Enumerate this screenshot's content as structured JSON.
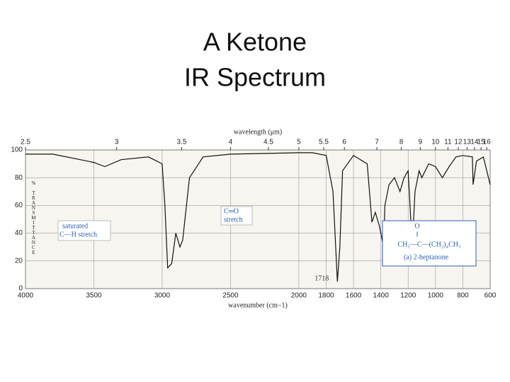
{
  "title": [
    "A Ketone",
    "IR Spectrum"
  ],
  "chart_data": {
    "type": "line",
    "xlabel": "wavenumber (cm−1)",
    "x2label": "wavelength (μm)",
    "ylabel": "% TRANSMITTANCE",
    "xlim": [
      4000,
      600
    ],
    "xticks": [
      4000,
      3500,
      3000,
      2500,
      2000,
      1800,
      1600,
      1400,
      1200,
      1000,
      800,
      600
    ],
    "x2ticks": [
      2.5,
      3,
      3.5,
      4,
      4.5,
      5,
      5.5,
      6,
      7,
      8,
      9,
      10,
      11,
      12,
      13,
      14,
      15,
      16
    ],
    "ylim": [
      0,
      100
    ],
    "yticks": [
      0,
      20,
      40,
      60,
      80,
      100
    ],
    "grid": true,
    "color": "#111111",
    "x": [
      4000,
      3800,
      3600,
      3500,
      3420,
      3300,
      3100,
      3000,
      2980,
      2960,
      2930,
      2900,
      2870,
      2850,
      2800,
      2700,
      2500,
      2000,
      1900,
      1800,
      1750,
      1718,
      1700,
      1680,
      1600,
      1500,
      1465,
      1440,
      1410,
      1380,
      1370,
      1340,
      1300,
      1260,
      1230,
      1200,
      1170,
      1150,
      1120,
      1100,
      1050,
      1000,
      950,
      900,
      850,
      800,
      730,
      725,
      700,
      650,
      600
    ],
    "values": [
      97,
      97,
      93,
      91,
      88,
      93,
      95,
      90,
      60,
      15,
      18,
      40,
      30,
      35,
      80,
      95,
      97,
      98,
      98,
      96,
      70,
      5,
      30,
      85,
      96,
      90,
      48,
      55,
      45,
      30,
      60,
      75,
      80,
      70,
      80,
      85,
      30,
      70,
      85,
      80,
      90,
      88,
      80,
      88,
      95,
      96,
      95,
      75,
      92,
      95,
      75
    ],
    "annotations": [
      "saturated",
      "C—H  stretch",
      "C═O",
      "stretch",
      "1718",
      "O",
      "‖",
      "CH₃—C—(CH₂)₄CH₃",
      "(a) 2-heptanone"
    ]
  }
}
